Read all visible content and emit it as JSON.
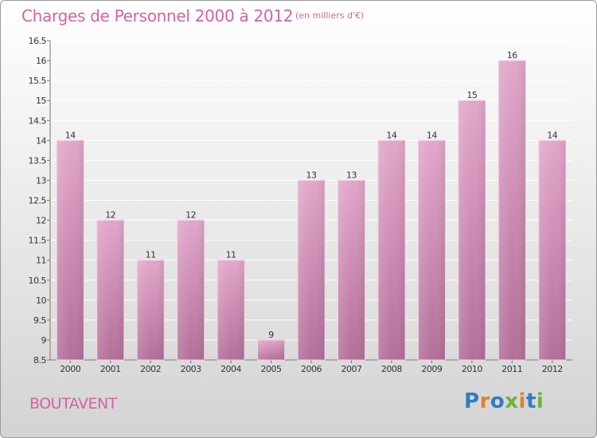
{
  "title": "Charges de Personnel 2000 à 2012",
  "unit": "(en milliers d'€)",
  "commune": "BOUTAVENT",
  "logo": {
    "text": "Proxiti",
    "colors": [
      "#2b7fc2",
      "#e0832a",
      "#2b7fc2",
      "#6bb33a",
      "#e0832a",
      "#2b7fc2",
      "#6bb33a"
    ]
  },
  "colors": {
    "bar_top": "#e3a6cb",
    "bar_bottom": "#b36f99",
    "accent": "#d0659f"
  },
  "chart_data": {
    "type": "bar",
    "categories": [
      "2000",
      "2001",
      "2002",
      "2003",
      "2004",
      "2005",
      "2006",
      "2007",
      "2008",
      "2009",
      "2010",
      "2011",
      "2012"
    ],
    "values": [
      14,
      12,
      11,
      12,
      11,
      9,
      13,
      13,
      14,
      14,
      15,
      16,
      14
    ],
    "data_labels": [
      "14",
      "12",
      "11",
      "12",
      "11",
      "9",
      "13",
      "13",
      "14",
      "14",
      "15",
      "16",
      "14"
    ],
    "ylim": [
      8.5,
      16.5
    ],
    "yticks": [
      "8.5",
      "9",
      "9.5",
      "10",
      "10.5",
      "11",
      "11.5",
      "12",
      "12.5",
      "13",
      "13.5",
      "14",
      "14.5",
      "15",
      "15.5",
      "16",
      "16.5"
    ],
    "grid": true
  }
}
